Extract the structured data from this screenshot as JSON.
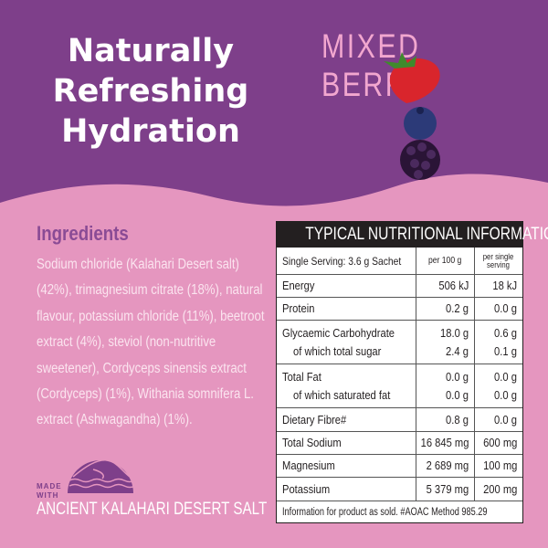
{
  "headline": [
    "Naturally",
    "Refreshing",
    "Hydration"
  ],
  "flavour": "MIXED BERRY",
  "colors": {
    "purple": "#7e3f8a",
    "pink": "#e596bf",
    "flavour_text": "#f2a7cf",
    "table_header": "#231f20"
  },
  "ingredients": {
    "title": "Ingredients",
    "text": "Sodium chloride (Kalahari Desert salt) (42%), trimagnesium citrate (18%), natural flavour, potassium chloride (11%), beetroot extract (4%), steviol (non-nutritive sweetener), Cordyceps sinensis extract (Cordyceps) (1%), Withania somnifera L. extract (Ashwagandha) (1%)."
  },
  "badge": {
    "made_with": [
      "MADE",
      "WITH"
    ],
    "salt": "ANCIENT KALAHARI DESERT SALT"
  },
  "nutrition": {
    "title": "TYPICAL NUTRITIONAL INFORMATION",
    "header": {
      "label": "Single Serving: 3.6 g Sachet",
      "per100": "per 100 g",
      "perserv": [
        "per single",
        "serving"
      ]
    },
    "rows": [
      {
        "lines": [
          [
            "Energy",
            "506 kJ",
            "18 kJ"
          ]
        ]
      },
      {
        "lines": [
          [
            "Protein",
            "0.2 g",
            "0.0 g"
          ]
        ]
      },
      {
        "lines": [
          [
            "Glycaemic Carbohydrate",
            "18.0 g",
            "0.6 g"
          ],
          [
            "of which total sugar",
            "2.4 g",
            "0.1 g"
          ]
        ]
      },
      {
        "lines": [
          [
            "Total Fat",
            "0.0 g",
            "0.0 g"
          ],
          [
            "of which saturated fat",
            "0.0 g",
            "0.0 g"
          ]
        ]
      },
      {
        "lines": [
          [
            "Dietary Fibre#",
            "0.8 g",
            "0.0 g"
          ]
        ]
      },
      {
        "lines": [
          [
            "Total Sodium",
            "16 845 mg",
            "600 mg"
          ]
        ]
      },
      {
        "lines": [
          [
            "Magnesium",
            "2 689 mg",
            "100 mg"
          ]
        ]
      },
      {
        "lines": [
          [
            "Potassium",
            "5 379 mg",
            "200 mg"
          ]
        ]
      }
    ],
    "footnote": "Information for product as sold. #AOAC Method 985.29"
  }
}
